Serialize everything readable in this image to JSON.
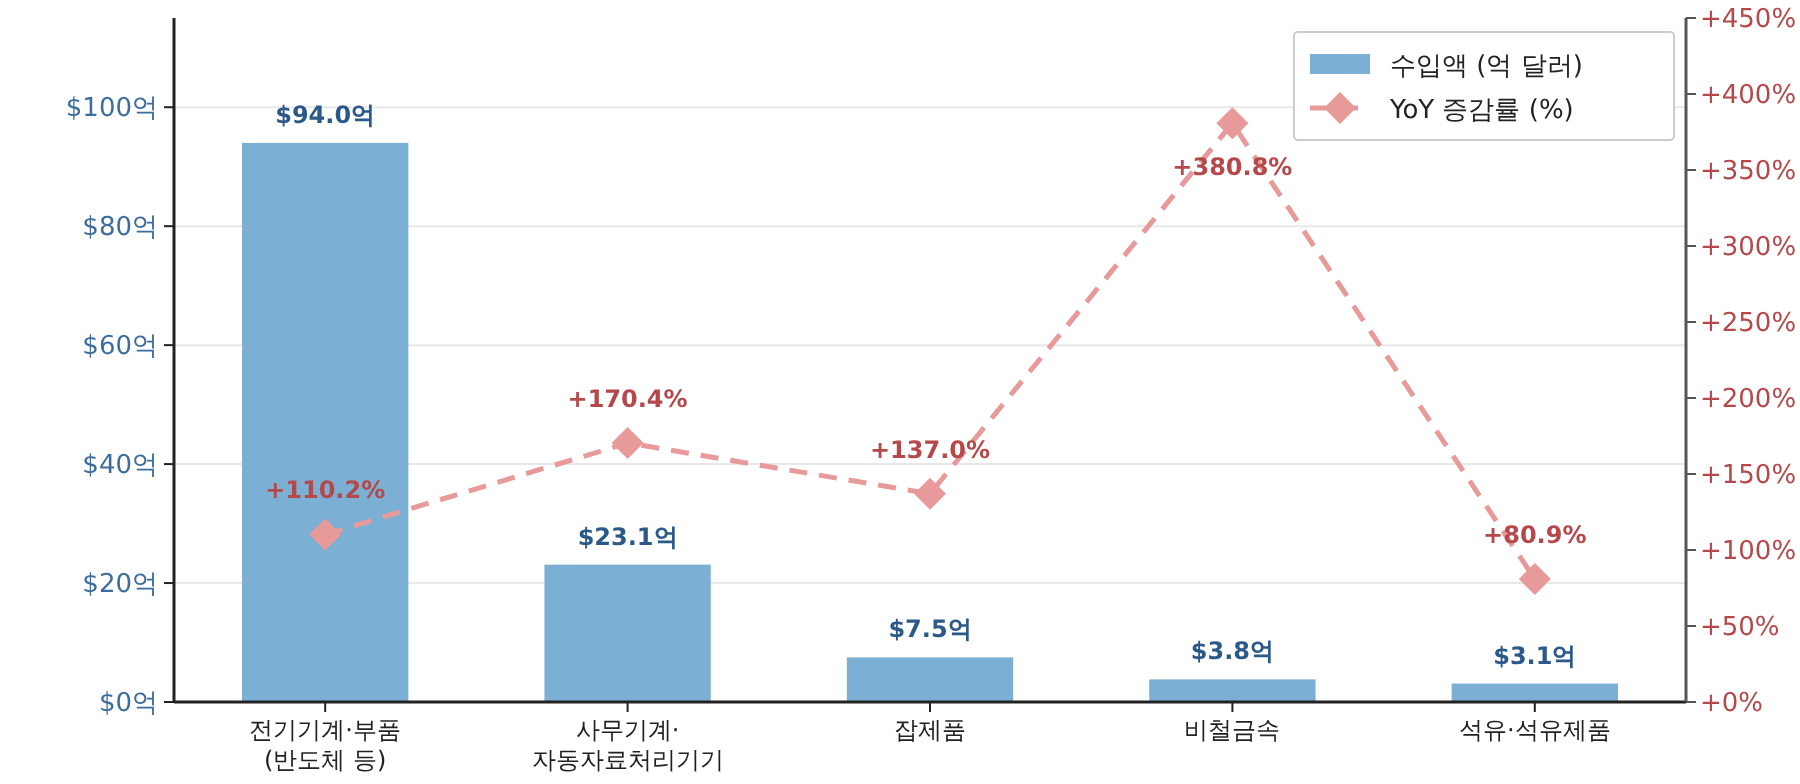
{
  "chart_data": {
    "type": "bar",
    "categories": [
      "전기기계·부품\n(반도체 등)",
      "사무기계·\n자동자료처리기기",
      "잡제품",
      "비철금속",
      "석유·석유제품"
    ],
    "series": [
      {
        "name": "수입액 (억 달러)",
        "color": "#7bafd4",
        "values": [
          94.0,
          23.1,
          7.5,
          3.8,
          3.1
        ],
        "value_labels": [
          "$94.0억",
          "$23.1억",
          "$7.5억",
          "$3.8억",
          "$3.1억"
        ]
      },
      {
        "name": "YoY 증감률 (%)",
        "type": "line",
        "axis": "y2",
        "color": "#e8999a",
        "marker": "diamond",
        "line_style": "dashed",
        "values": [
          110.2,
          170.4,
          137.0,
          380.8,
          80.9
        ],
        "value_labels": [
          "+110.2%",
          "+170.4%",
          "+137.0%",
          "+380.8%",
          "+80.9%"
        ]
      }
    ],
    "ylim": [
      0,
      115
    ],
    "yticks": [
      {
        "value": 0,
        "label": "$0억"
      },
      {
        "value": 20,
        "label": "$20억"
      },
      {
        "value": 40,
        "label": "$40억"
      },
      {
        "value": 60,
        "label": "$60억"
      },
      {
        "value": 80,
        "label": "$80억"
      },
      {
        "value": 100,
        "label": "$100억"
      }
    ],
    "y2lim": [
      0,
      450
    ],
    "y2ticks": [
      {
        "value": 0,
        "label": "+0%"
      },
      {
        "value": 50,
        "label": "+50%"
      },
      {
        "value": 100,
        "label": "+100%"
      },
      {
        "value": 150,
        "label": "+150%"
      },
      {
        "value": 200,
        "label": "+200%"
      },
      {
        "value": 250,
        "label": "+250%"
      },
      {
        "value": 300,
        "label": "+300%"
      },
      {
        "value": 350,
        "label": "+350%"
      },
      {
        "value": 400,
        "label": "+400%"
      },
      {
        "value": 450,
        "label": "+450%"
      }
    ],
    "grid": "y",
    "legend": "top right"
  }
}
